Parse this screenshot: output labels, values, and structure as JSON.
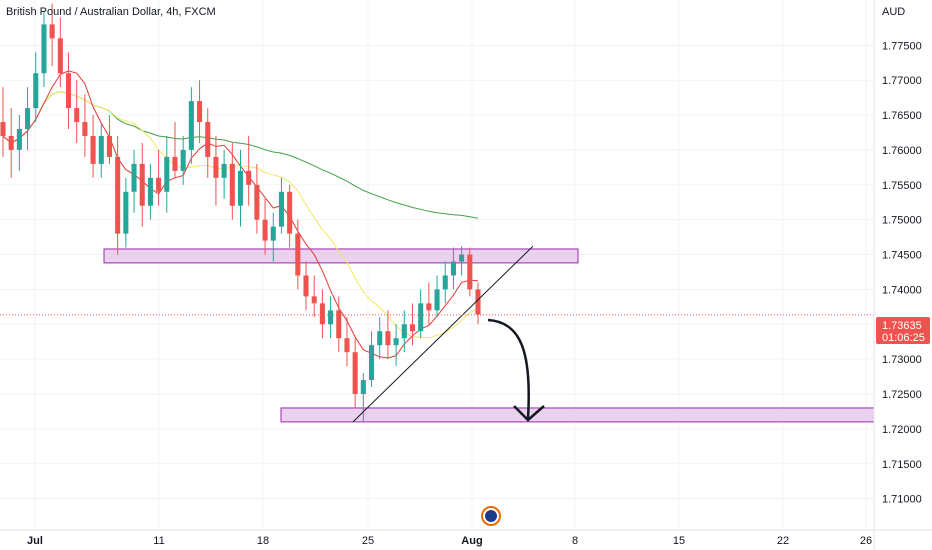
{
  "chart_data": {
    "type": "candlestick",
    "title": "British Pound / Australian Dollar, 4h, FXCM",
    "currency": "AUD",
    "ylim": [
      1.7055,
      1.7815
    ],
    "y_ticks": [
      "1.77500",
      "1.77000",
      "1.76500",
      "1.76000",
      "1.75500",
      "1.75000",
      "1.74500",
      "1.74000",
      "1.73500",
      "1.73000",
      "1.72500",
      "1.72000",
      "1.71500",
      "1.71000"
    ],
    "x_ticks": [
      {
        "label": "Jul",
        "bold": true
      },
      {
        "label": "11",
        "bold": false
      },
      {
        "label": "18",
        "bold": false
      },
      {
        "label": "25",
        "bold": false
      },
      {
        "label": "Aug",
        "bold": true
      },
      {
        "label": "8",
        "bold": false
      },
      {
        "label": "15",
        "bold": false
      },
      {
        "label": "22",
        "bold": false
      },
      {
        "label": "26",
        "bold": false
      }
    ],
    "current_price": "1.73635",
    "countdown": "01:06:25",
    "colors": {
      "up": "#26a69a",
      "down": "#ef5350",
      "ma_fast": "#e53935",
      "ma_mid": "#f5e663",
      "ma_slow": "#43a047",
      "zone_fill": "#e1bee7",
      "zone_border": "#9c27b0",
      "grid": "#f0f3fa"
    },
    "resistance_zone": [
      1.7438,
      1.7458
    ],
    "support_zone": [
      1.721,
      1.723
    ],
    "trendline": [
      [
        1.721
      ],
      [
        1.7462
      ]
    ],
    "candles": [
      [
        1.764,
        1.769,
        1.759,
        1.762
      ],
      [
        1.762,
        1.766,
        1.756,
        1.76
      ],
      [
        1.76,
        1.765,
        1.757,
        1.763
      ],
      [
        1.763,
        1.769,
        1.76,
        1.766
      ],
      [
        1.766,
        1.774,
        1.764,
        1.771
      ],
      [
        1.771,
        1.78,
        1.769,
        1.778
      ],
      [
        1.778,
        1.781,
        1.772,
        1.776
      ],
      [
        1.776,
        1.779,
        1.769,
        1.771
      ],
      [
        1.771,
        1.774,
        1.763,
        1.766
      ],
      [
        1.766,
        1.77,
        1.761,
        1.764
      ],
      [
        1.764,
        1.768,
        1.759,
        1.762
      ],
      [
        1.762,
        1.765,
        1.756,
        1.758
      ],
      [
        1.758,
        1.764,
        1.756,
        1.762
      ],
      [
        1.762,
        1.765,
        1.758,
        1.759
      ],
      [
        1.759,
        1.762,
        1.745,
        1.748
      ],
      [
        1.748,
        1.756,
        1.746,
        1.754
      ],
      [
        1.754,
        1.76,
        1.751,
        1.758
      ],
      [
        1.758,
        1.761,
        1.749,
        1.752
      ],
      [
        1.752,
        1.758,
        1.75,
        1.756
      ],
      [
        1.756,
        1.76,
        1.752,
        1.754
      ],
      [
        1.754,
        1.762,
        1.751,
        1.759
      ],
      [
        1.759,
        1.764,
        1.756,
        1.757
      ],
      [
        1.757,
        1.762,
        1.755,
        1.76
      ],
      [
        1.76,
        1.769,
        1.758,
        1.767
      ],
      [
        1.767,
        1.77,
        1.761,
        1.764
      ],
      [
        1.764,
        1.766,
        1.756,
        1.759
      ],
      [
        1.759,
        1.762,
        1.752,
        1.756
      ],
      [
        1.756,
        1.76,
        1.753,
        1.758
      ],
      [
        1.758,
        1.761,
        1.75,
        1.752
      ],
      [
        1.752,
        1.76,
        1.749,
        1.757
      ],
      [
        1.757,
        1.762,
        1.752,
        1.755
      ],
      [
        1.755,
        1.758,
        1.748,
        1.75
      ],
      [
        1.75,
        1.753,
        1.745,
        1.747
      ],
      [
        1.747,
        1.751,
        1.744,
        1.749
      ],
      [
        1.749,
        1.756,
        1.748,
        1.754
      ],
      [
        1.754,
        1.755,
        1.746,
        1.748
      ],
      [
        1.748,
        1.75,
        1.74,
        1.742
      ],
      [
        1.742,
        1.744,
        1.737,
        1.739
      ],
      [
        1.739,
        1.742,
        1.736,
        1.738
      ],
      [
        1.738,
        1.74,
        1.733,
        1.735
      ],
      [
        1.735,
        1.739,
        1.733,
        1.737
      ],
      [
        1.737,
        1.739,
        1.731,
        1.733
      ],
      [
        1.733,
        1.736,
        1.729,
        1.731
      ],
      [
        1.731,
        1.733,
        1.723,
        1.725
      ],
      [
        1.725,
        1.728,
        1.721,
        1.727
      ],
      [
        1.727,
        1.734,
        1.726,
        1.732
      ],
      [
        1.732,
        1.736,
        1.73,
        1.734
      ],
      [
        1.734,
        1.737,
        1.73,
        1.732
      ],
      [
        1.732,
        1.735,
        1.729,
        1.733
      ],
      [
        1.733,
        1.737,
        1.731,
        1.735
      ],
      [
        1.735,
        1.738,
        1.732,
        1.734
      ],
      [
        1.734,
        1.74,
        1.733,
        1.738
      ],
      [
        1.738,
        1.741,
        1.735,
        1.737
      ],
      [
        1.737,
        1.742,
        1.736,
        1.74
      ],
      [
        1.74,
        1.744,
        1.738,
        1.742
      ],
      [
        1.742,
        1.746,
        1.74,
        1.744
      ],
      [
        1.744,
        1.7462,
        1.742,
        1.745
      ],
      [
        1.745,
        1.746,
        1.739,
        1.74
      ],
      [
        1.74,
        1.741,
        1.735,
        1.7364
      ]
    ]
  }
}
